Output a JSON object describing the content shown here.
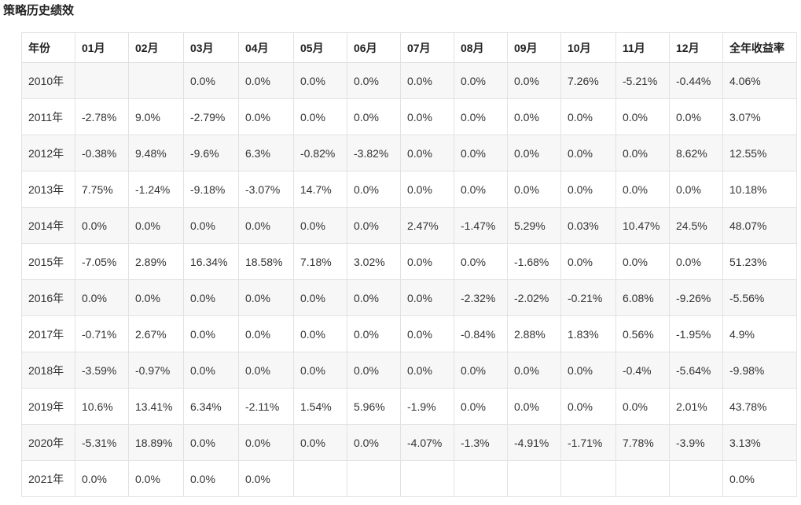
{
  "title": "策略历史绩效",
  "table": {
    "headers": [
      "年份",
      "01月",
      "02月",
      "03月",
      "04月",
      "05月",
      "06月",
      "07月",
      "08月",
      "09月",
      "10月",
      "11月",
      "12月",
      "全年收益率"
    ],
    "rows": [
      [
        "2010年",
        "",
        "",
        "0.0%",
        "0.0%",
        "0.0%",
        "0.0%",
        "0.0%",
        "0.0%",
        "0.0%",
        "7.26%",
        "-5.21%",
        "-0.44%",
        "4.06%"
      ],
      [
        "2011年",
        "-2.78%",
        "9.0%",
        "-2.79%",
        "0.0%",
        "0.0%",
        "0.0%",
        "0.0%",
        "0.0%",
        "0.0%",
        "0.0%",
        "0.0%",
        "0.0%",
        "3.07%"
      ],
      [
        "2012年",
        "-0.38%",
        "9.48%",
        "-9.6%",
        "6.3%",
        "-0.82%",
        "-3.82%",
        "0.0%",
        "0.0%",
        "0.0%",
        "0.0%",
        "0.0%",
        "8.62%",
        "12.55%"
      ],
      [
        "2013年",
        "7.75%",
        "-1.24%",
        "-9.18%",
        "-3.07%",
        "14.7%",
        "0.0%",
        "0.0%",
        "0.0%",
        "0.0%",
        "0.0%",
        "0.0%",
        "0.0%",
        "10.18%"
      ],
      [
        "2014年",
        "0.0%",
        "0.0%",
        "0.0%",
        "0.0%",
        "0.0%",
        "0.0%",
        "2.47%",
        "-1.47%",
        "5.29%",
        "0.03%",
        "10.47%",
        "24.5%",
        "48.07%"
      ],
      [
        "2015年",
        "-7.05%",
        "2.89%",
        "16.34%",
        "18.58%",
        "7.18%",
        "3.02%",
        "0.0%",
        "0.0%",
        "-1.68%",
        "0.0%",
        "0.0%",
        "0.0%",
        "51.23%"
      ],
      [
        "2016年",
        "0.0%",
        "0.0%",
        "0.0%",
        "0.0%",
        "0.0%",
        "0.0%",
        "0.0%",
        "-2.32%",
        "-2.02%",
        "-0.21%",
        "6.08%",
        "-9.26%",
        "-5.56%"
      ],
      [
        "2017年",
        "-0.71%",
        "2.67%",
        "0.0%",
        "0.0%",
        "0.0%",
        "0.0%",
        "0.0%",
        "-0.84%",
        "2.88%",
        "1.83%",
        "0.56%",
        "-1.95%",
        "4.9%"
      ],
      [
        "2018年",
        "-3.59%",
        "-0.97%",
        "0.0%",
        "0.0%",
        "0.0%",
        "0.0%",
        "0.0%",
        "0.0%",
        "0.0%",
        "0.0%",
        "-0.4%",
        "-5.64%",
        "-9.98%"
      ],
      [
        "2019年",
        "10.6%",
        "13.41%",
        "6.34%",
        "-2.11%",
        "1.54%",
        "5.96%",
        "-1.9%",
        "0.0%",
        "0.0%",
        "0.0%",
        "0.0%",
        "2.01%",
        "43.78%"
      ],
      [
        "2020年",
        "-5.31%",
        "18.89%",
        "0.0%",
        "0.0%",
        "0.0%",
        "0.0%",
        "-4.07%",
        "-1.3%",
        "-4.91%",
        "-1.71%",
        "7.78%",
        "-3.9%",
        "3.13%"
      ],
      [
        "2021年",
        "0.0%",
        "0.0%",
        "0.0%",
        "0.0%",
        "",
        "",
        "",
        "",
        "",
        "",
        "",
        "",
        "0.0%"
      ]
    ]
  }
}
